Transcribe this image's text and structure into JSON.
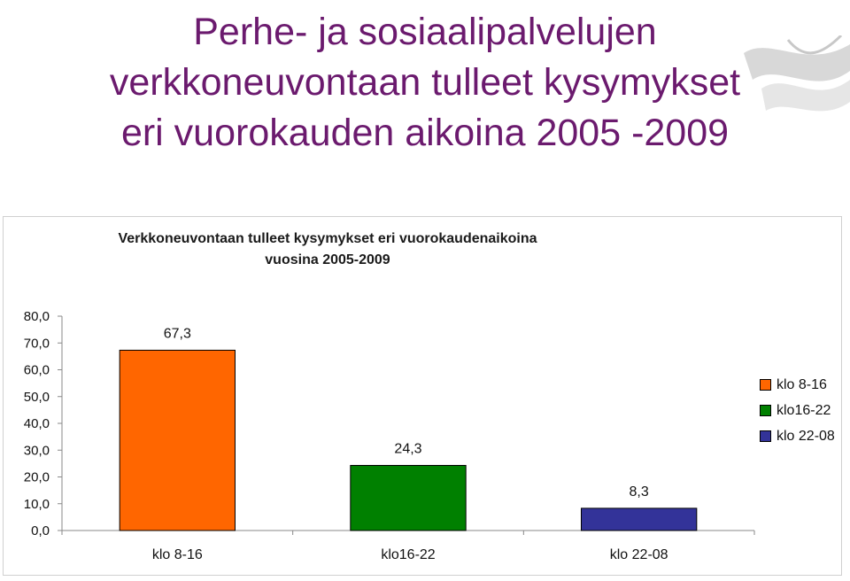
{
  "slide": {
    "title_lines": [
      "Perhe- ja sosiaalipalvelujen",
      "verkkoneuvontaan tulleet kysymykset",
      "eri vuorokauden aikoina  2005 -2009"
    ]
  },
  "chart_data": {
    "type": "bar",
    "title_lines": [
      "Verkkoneuvontaan tulleet kysymykset eri vuorokaudenaikoina",
      "vuosina 2005-2009"
    ],
    "categories": [
      "klo 8-16",
      "klo16-22",
      "klo 22-08"
    ],
    "values": [
      67.3,
      24.3,
      8.3
    ],
    "value_labels": [
      "67,3",
      "24,3",
      "8,3"
    ],
    "colors": [
      "#ff6600",
      "#008000",
      "#333399"
    ],
    "ylim": [
      0,
      80
    ],
    "yticks": [
      "0,0",
      "10,0",
      "20,0",
      "30,0",
      "40,0",
      "50,0",
      "60,0",
      "70,0",
      "80,0"
    ],
    "grid": false,
    "legend": {
      "position": "right",
      "entries": [
        "klo 8-16",
        "klo16-22",
        "klo 22-08"
      ]
    }
  }
}
